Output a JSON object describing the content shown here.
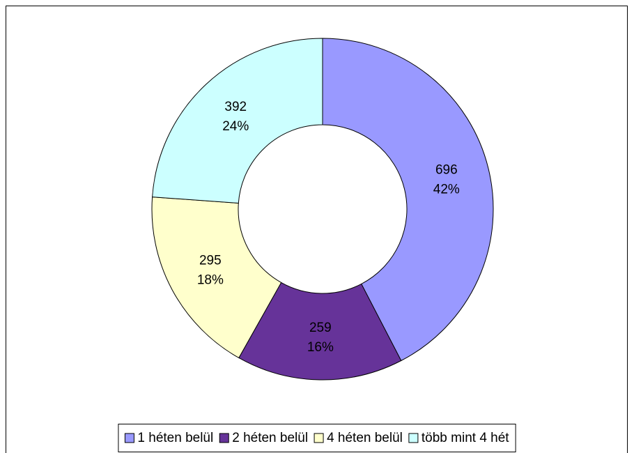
{
  "chart_data": {
    "type": "donut",
    "categories": [
      "1 héten belül",
      "2 héten belül",
      "4 héten belül",
      "több mint 4 hét"
    ],
    "values": [
      696,
      259,
      295,
      392
    ],
    "percent_labels": [
      "42%",
      "16%",
      "18%",
      "24%"
    ],
    "colors": [
      "#9999ff",
      "#663399",
      "#ffffcc",
      "#ccffff"
    ],
    "legend": "bottom"
  }
}
